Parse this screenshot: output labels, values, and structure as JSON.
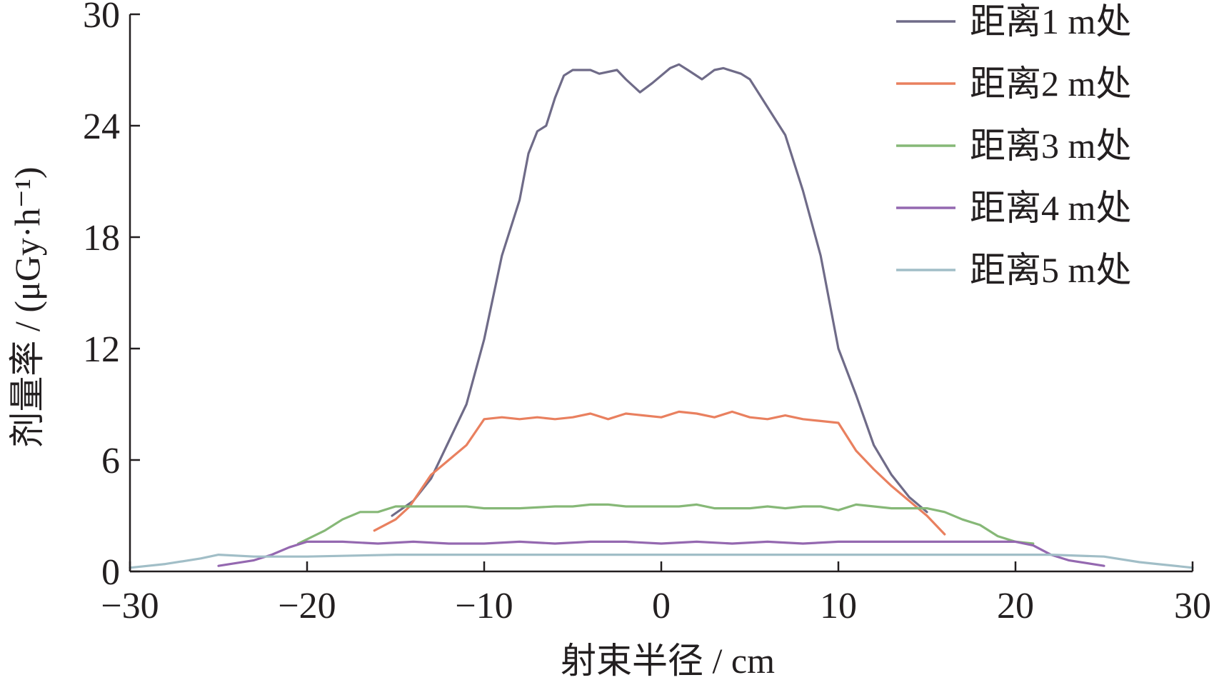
{
  "chart_data": {
    "type": "line",
    "xlabel": "射束半径 / cm",
    "ylabel": "剂量率 / (μGy·h⁻¹)",
    "xlim": [
      -30,
      30
    ],
    "ylim": [
      0,
      30
    ],
    "xticks": [
      -30,
      -20,
      -10,
      0,
      10,
      20,
      30
    ],
    "xtick_labels": [
      "−30",
      "−20",
      "−10",
      "0",
      "10",
      "20",
      "30"
    ],
    "yticks": [
      0,
      6,
      12,
      18,
      24,
      30
    ],
    "ytick_labels": [
      "0",
      "6",
      "12",
      "18",
      "24",
      "30"
    ],
    "grid": false,
    "legend_position": "top-right",
    "series": [
      {
        "name": "距离1 m处",
        "color": "#6f6b88",
        "points": [
          [
            -15.2,
            3.0
          ],
          [
            -14,
            3.8
          ],
          [
            -13,
            5.0
          ],
          [
            -12,
            7.0
          ],
          [
            -11,
            9.0
          ],
          [
            -10,
            12.5
          ],
          [
            -9,
            17.0
          ],
          [
            -8,
            20.0
          ],
          [
            -7.5,
            22.5
          ],
          [
            -7,
            23.7
          ],
          [
            -6.5,
            24.0
          ],
          [
            -6,
            25.5
          ],
          [
            -5.5,
            26.7
          ],
          [
            -5,
            27.0
          ],
          [
            -4,
            27.0
          ],
          [
            -3.5,
            26.8
          ],
          [
            -2.5,
            27.0
          ],
          [
            -2,
            26.5
          ],
          [
            -1.2,
            25.8
          ],
          [
            -0.5,
            26.3
          ],
          [
            0.5,
            27.1
          ],
          [
            1,
            27.3
          ],
          [
            1.5,
            27.0
          ],
          [
            2.3,
            26.5
          ],
          [
            3,
            27.0
          ],
          [
            3.5,
            27.1
          ],
          [
            4.5,
            26.8
          ],
          [
            5,
            26.5
          ],
          [
            6,
            25.0
          ],
          [
            7,
            23.5
          ],
          [
            8,
            20.5
          ],
          [
            9,
            17.0
          ],
          [
            10,
            12.0
          ],
          [
            11,
            9.5
          ],
          [
            12,
            6.8
          ],
          [
            13,
            5.2
          ],
          [
            14,
            4.0
          ],
          [
            15,
            3.2
          ]
        ]
      },
      {
        "name": "距离2 m处",
        "color": "#e9805f",
        "points": [
          [
            -16.2,
            2.2
          ],
          [
            -15,
            2.8
          ],
          [
            -14.2,
            3.5
          ],
          [
            -13.5,
            4.5
          ],
          [
            -13,
            5.2
          ],
          [
            -12,
            6.0
          ],
          [
            -11,
            6.8
          ],
          [
            -10.5,
            7.5
          ],
          [
            -10,
            8.2
          ],
          [
            -9,
            8.3
          ],
          [
            -8,
            8.2
          ],
          [
            -7,
            8.3
          ],
          [
            -6,
            8.2
          ],
          [
            -5,
            8.3
          ],
          [
            -4,
            8.5
          ],
          [
            -3,
            8.2
          ],
          [
            -2,
            8.5
          ],
          [
            -1,
            8.4
          ],
          [
            0,
            8.3
          ],
          [
            1,
            8.6
          ],
          [
            2,
            8.5
          ],
          [
            3,
            8.3
          ],
          [
            4,
            8.6
          ],
          [
            5,
            8.3
          ],
          [
            6,
            8.2
          ],
          [
            7,
            8.4
          ],
          [
            8,
            8.2
          ],
          [
            9,
            8.1
          ],
          [
            10,
            8.0
          ],
          [
            11,
            6.5
          ],
          [
            12,
            5.5
          ],
          [
            13,
            4.6
          ],
          [
            14,
            3.8
          ],
          [
            15,
            3.0
          ],
          [
            16,
            2.0
          ]
        ]
      },
      {
        "name": "距离3 m处",
        "color": "#86b877",
        "points": [
          [
            -20.5,
            1.5
          ],
          [
            -19,
            2.2
          ],
          [
            -18,
            2.8
          ],
          [
            -17,
            3.2
          ],
          [
            -16,
            3.2
          ],
          [
            -15,
            3.5
          ],
          [
            -14,
            3.5
          ],
          [
            -13,
            3.5
          ],
          [
            -12,
            3.5
          ],
          [
            -11,
            3.5
          ],
          [
            -10,
            3.4
          ],
          [
            -8,
            3.4
          ],
          [
            -6,
            3.5
          ],
          [
            -5,
            3.5
          ],
          [
            -4,
            3.6
          ],
          [
            -3,
            3.6
          ],
          [
            -2,
            3.5
          ],
          [
            -1,
            3.5
          ],
          [
            0,
            3.5
          ],
          [
            1,
            3.5
          ],
          [
            2,
            3.6
          ],
          [
            3,
            3.4
          ],
          [
            4,
            3.4
          ],
          [
            5,
            3.4
          ],
          [
            6,
            3.5
          ],
          [
            7,
            3.4
          ],
          [
            8,
            3.5
          ],
          [
            9,
            3.5
          ],
          [
            10,
            3.3
          ],
          [
            11,
            3.6
          ],
          [
            12,
            3.5
          ],
          [
            13,
            3.4
          ],
          [
            14,
            3.4
          ],
          [
            15,
            3.4
          ],
          [
            16,
            3.2
          ],
          [
            17,
            2.8
          ],
          [
            18,
            2.5
          ],
          [
            19,
            1.9
          ],
          [
            20,
            1.6
          ],
          [
            21,
            1.5
          ]
        ]
      },
      {
        "name": "距离4 m处",
        "color": "#9468b0",
        "points": [
          [
            -25,
            0.3
          ],
          [
            -23,
            0.6
          ],
          [
            -22,
            0.9
          ],
          [
            -21,
            1.3
          ],
          [
            -20,
            1.6
          ],
          [
            -18,
            1.6
          ],
          [
            -16,
            1.5
          ],
          [
            -14,
            1.6
          ],
          [
            -12,
            1.5
          ],
          [
            -10,
            1.5
          ],
          [
            -8,
            1.6
          ],
          [
            -6,
            1.5
          ],
          [
            -4,
            1.6
          ],
          [
            -2,
            1.6
          ],
          [
            0,
            1.5
          ],
          [
            2,
            1.6
          ],
          [
            4,
            1.5
          ],
          [
            6,
            1.6
          ],
          [
            8,
            1.5
          ],
          [
            10,
            1.6
          ],
          [
            12,
            1.6
          ],
          [
            14,
            1.6
          ],
          [
            16,
            1.6
          ],
          [
            18,
            1.6
          ],
          [
            20,
            1.6
          ],
          [
            21,
            1.4
          ],
          [
            22,
            0.9
          ],
          [
            23,
            0.6
          ],
          [
            25,
            0.3
          ]
        ]
      },
      {
        "name": "距离5 m处",
        "color": "#a1bec7",
        "points": [
          [
            -30,
            0.2
          ],
          [
            -28,
            0.4
          ],
          [
            -26,
            0.7
          ],
          [
            -25,
            0.9
          ],
          [
            -23,
            0.8
          ],
          [
            -20,
            0.8
          ],
          [
            -15,
            0.9
          ],
          [
            -10,
            0.9
          ],
          [
            -5,
            0.9
          ],
          [
            0,
            0.9
          ],
          [
            5,
            0.9
          ],
          [
            10,
            0.9
          ],
          [
            15,
            0.9
          ],
          [
            20,
            0.9
          ],
          [
            22,
            0.9
          ],
          [
            25,
            0.8
          ],
          [
            27,
            0.5
          ],
          [
            28,
            0.4
          ],
          [
            30,
            0.2
          ]
        ]
      }
    ]
  }
}
